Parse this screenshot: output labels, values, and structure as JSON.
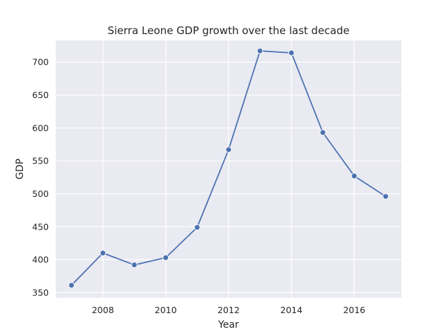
{
  "chart_data": {
    "type": "line",
    "title": "Sierra Leone GDP growth over the last decade",
    "xlabel": "Year",
    "ylabel": "GDP",
    "x": [
      2007,
      2008,
      2009,
      2010,
      2011,
      2012,
      2013,
      2014,
      2015,
      2016,
      2017
    ],
    "series": [
      {
        "values": [
          361,
          410,
          392,
          403,
          449,
          567,
          717,
          714,
          593,
          527,
          496
        ]
      }
    ],
    "xlim": [
      2006.5,
      2017.5
    ],
    "ylim": [
      342,
      733
    ],
    "xticks": [
      "2008",
      "2010",
      "2012",
      "2014",
      "2016"
    ],
    "yticks": [
      "350",
      "400",
      "450",
      "500",
      "550",
      "600",
      "650",
      "700"
    ],
    "grid": true,
    "legend": "none",
    "colors": {
      "background": "#eaeaf2",
      "grid": "#ffffff",
      "line": "#4c72b0"
    }
  }
}
